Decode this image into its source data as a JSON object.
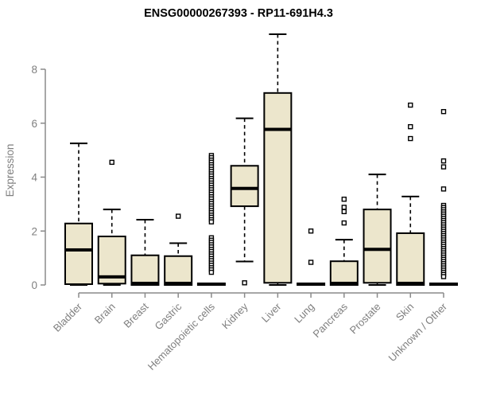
{
  "chart_data": {
    "type": "boxplot",
    "title": "ENSG00000267393 - RP11-691H4.3",
    "ylabel": "Expression",
    "xlabel": "",
    "ylim": [
      0,
      8
    ],
    "yticks": [
      0,
      2,
      4,
      6,
      8
    ],
    "grid": false,
    "legend": "none",
    "colors": {
      "box_fill": "#ece6cc",
      "box_stroke": "#000000",
      "median": "#000000",
      "whisker": "#000000",
      "outlier_stroke": "#000000",
      "outlier_fill": "#ffffff",
      "axis": "#8a8a8a",
      "tick_label": "#7f7f7f",
      "title": "#000000",
      "background": "#ffffff"
    },
    "categories": [
      "Bladder",
      "Brain",
      "Breast",
      "Gastric",
      "Hematopoietic cells",
      "Kidney",
      "Liver",
      "Lung",
      "Pancreas",
      "Prostate",
      "Skin",
      "Unknown / Other"
    ],
    "series": [
      {
        "name": "Bladder",
        "q1": 0.03,
        "median": 1.3,
        "q3": 2.28,
        "whisker_low": 0,
        "whisker_high": 5.25,
        "outliers": []
      },
      {
        "name": "Brain",
        "q1": 0.05,
        "median": 0.3,
        "q3": 1.8,
        "whisker_low": 0,
        "whisker_high": 2.8,
        "outliers": [
          4.55
        ]
      },
      {
        "name": "Breast",
        "q1": 0,
        "median": 0.06,
        "q3": 1.1,
        "whisker_low": null,
        "whisker_high": 2.42,
        "outliers": []
      },
      {
        "name": "Gastric",
        "q1": 0,
        "median": 0.06,
        "q3": 1.07,
        "whisker_low": null,
        "whisker_high": 1.55,
        "outliers": [
          2.55
        ]
      },
      {
        "name": "Hematopoietic cells",
        "q1": 0,
        "median": 0.03,
        "q3": 0.06,
        "whisker_low": null,
        "whisker_high": null,
        "outliers": [
          4.8,
          4.72,
          4.63,
          4.55,
          4.46,
          4.38,
          4.29,
          4.21,
          4.12,
          4.04,
          3.95,
          3.87,
          3.78,
          3.7,
          3.61,
          3.53,
          3.44,
          3.36,
          3.27,
          3.19,
          3.1,
          3.02,
          2.93,
          2.85,
          2.76,
          2.68,
          2.59,
          2.51,
          2.42,
          2.34,
          1.75,
          1.66,
          1.58,
          1.49,
          1.41,
          1.32,
          1.24,
          1.15,
          1.07,
          0.98,
          0.9,
          0.81,
          0.73,
          0.64,
          0.56,
          0.47
        ]
      },
      {
        "name": "Kidney",
        "q1": 2.92,
        "median": 3.58,
        "q3": 4.42,
        "whisker_low": 0.87,
        "whisker_high": 6.18,
        "outliers": [
          0.08
        ]
      },
      {
        "name": "Liver",
        "q1": 0.08,
        "median": 5.77,
        "q3": 7.12,
        "whisker_low": 0,
        "whisker_high": 9.3,
        "outliers": []
      },
      {
        "name": "Lung",
        "q1": 0,
        "median": 0.03,
        "q3": 0.06,
        "whisker_low": null,
        "whisker_high": null,
        "outliers": [
          2.0,
          0.84
        ]
      },
      {
        "name": "Pancreas",
        "q1": 0,
        "median": 0.06,
        "q3": 0.88,
        "whisker_low": null,
        "whisker_high": 1.68,
        "outliers": [
          3.18,
          2.88,
          2.72,
          2.3
        ]
      },
      {
        "name": "Prostate",
        "q1": 0.08,
        "median": 1.32,
        "q3": 2.8,
        "whisker_low": 0,
        "whisker_high": 4.1,
        "outliers": []
      },
      {
        "name": "Skin",
        "q1": 0,
        "median": 0.06,
        "q3": 1.92,
        "whisker_low": null,
        "whisker_high": 3.28,
        "outliers": [
          6.67,
          5.87,
          5.43
        ]
      },
      {
        "name": "Unknown / Other",
        "q1": 0,
        "median": 0.03,
        "q3": 0.06,
        "whisker_low": null,
        "whisker_high": null,
        "outliers": [
          6.43,
          4.6,
          4.38,
          3.56,
          2.95,
          2.87,
          2.79,
          2.71,
          2.63,
          2.55,
          2.47,
          2.39,
          2.31,
          2.23,
          2.15,
          2.07,
          1.99,
          1.91,
          1.83,
          1.75,
          1.67,
          1.59,
          1.51,
          1.43,
          1.35,
          1.27,
          1.19,
          1.11,
          1.03,
          0.95,
          0.87,
          0.79,
          0.71,
          0.63,
          0.55,
          0.47,
          0.39,
          0.31
        ]
      }
    ]
  }
}
